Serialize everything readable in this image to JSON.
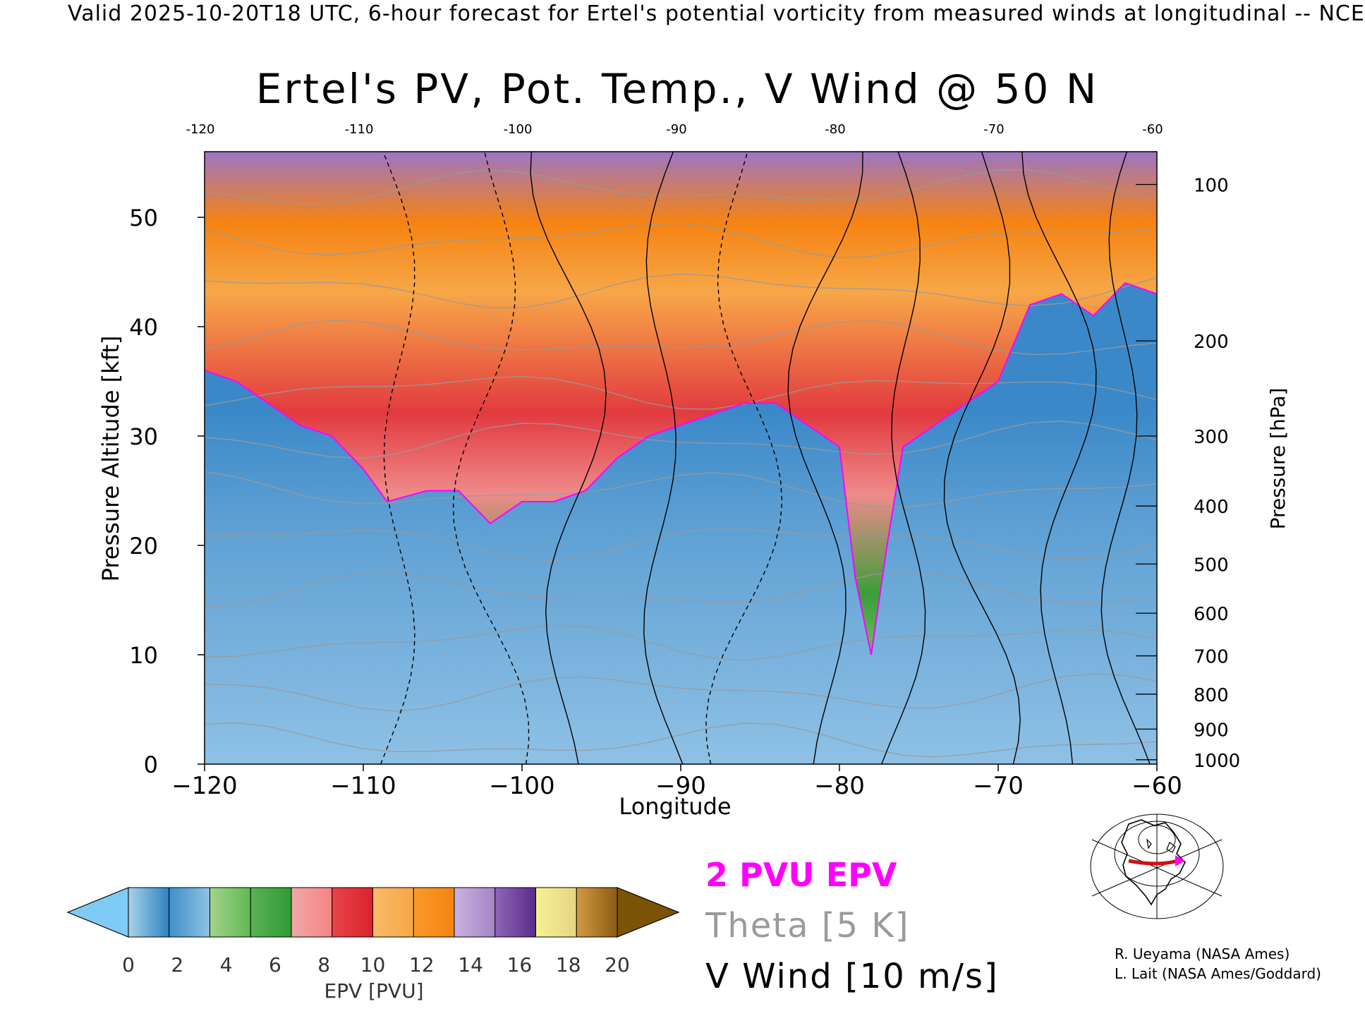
{
  "header": "Valid 2025-10-20T18 UTC, 6-hour forecast for Ertel's potential vorticity from measured winds at longitudinal -- NCE",
  "chart_data": {
    "type": "heatmap",
    "title": "Ertel's PV, Pot. Temp., V Wind @ 50 N",
    "xlabel": "Longitude",
    "ylabel": "Pressure Altitude [kft]",
    "y2label": "Pressure [hPa]",
    "xlim": [
      -120,
      -60
    ],
    "ylim": [
      0,
      56
    ],
    "x_ticks": [
      -120,
      -110,
      -100,
      -90,
      -80,
      -70,
      -60
    ],
    "x_tick_labels": [
      "−120",
      "−110",
      "−100",
      "−90",
      "−80",
      "−70",
      "−60"
    ],
    "top_tick_labels": [
      "-120",
      "-110",
      "-100",
      "-90",
      "-80",
      "-70",
      "-60"
    ],
    "y_ticks": [
      0,
      10,
      20,
      30,
      40,
      50
    ],
    "pressure_ticks": [
      {
        "hPa": "100",
        "kft": 53.0
      },
      {
        "hPa": "200",
        "kft": 38.7
      },
      {
        "hPa": "300",
        "kft": 30.0
      },
      {
        "hPa": "400",
        "kft": 23.6
      },
      {
        "hPa": "500",
        "kft": 18.3
      },
      {
        "hPa": "600",
        "kft": 13.8
      },
      {
        "hPa": "700",
        "kft": 9.9
      },
      {
        "hPa": "800",
        "kft": 6.4
      },
      {
        "hPa": "900",
        "kft": 3.2
      },
      {
        "hPa": "1000",
        "kft": 0.4
      }
    ],
    "colorbar": {
      "label": "EPV [PVU]",
      "tick_labels": [
        "0",
        "2",
        "4",
        "6",
        "8",
        "10",
        "12",
        "14",
        "16",
        "18",
        "20"
      ],
      "under_color": "#7fcbf5",
      "over_color": "#7a5306",
      "bins": [
        [
          "#a9d2ea",
          "#2c82c0"
        ],
        [
          "#3f90c9",
          "#8fc1e5"
        ],
        [
          "#a4d48e",
          "#5fb853"
        ],
        [
          "#5cb255",
          "#2f9a35"
        ],
        [
          "#f0a8a8",
          "#f58383"
        ],
        [
          "#e8454a",
          "#d9232b"
        ],
        [
          "#f9ba68",
          "#f7a748"
        ],
        [
          "#fa9a2a",
          "#f58312"
        ],
        [
          "#c9b2de",
          "#a584c8"
        ],
        [
          "#8e66b8",
          "#5b2c8a"
        ],
        [
          "#f6f193",
          "#e8d585"
        ],
        [
          "#d49a43",
          "#8a5b12"
        ]
      ]
    },
    "tropopause_pvu": 2,
    "tropopause_kft": [
      [
        -120,
        36
      ],
      [
        -118,
        35
      ],
      [
        -116,
        33
      ],
      [
        -114,
        31
      ],
      [
        -112,
        30
      ],
      [
        -110,
        27
      ],
      [
        -108.5,
        24
      ],
      [
        -106,
        25
      ],
      [
        -104,
        25
      ],
      [
        -102,
        22
      ],
      [
        -100,
        24
      ],
      [
        -98,
        24
      ],
      [
        -96,
        25
      ],
      [
        -94,
        28
      ],
      [
        -92,
        30
      ],
      [
        -90,
        31
      ],
      [
        -88,
        32
      ],
      [
        -86,
        33
      ],
      [
        -84,
        33
      ],
      [
        -82,
        31
      ],
      [
        -80,
        29
      ],
      [
        -79,
        17
      ],
      [
        -78,
        10
      ],
      [
        -77,
        20
      ],
      [
        -76,
        29
      ],
      [
        -74,
        31
      ],
      [
        -72,
        33
      ],
      [
        -70,
        35
      ],
      [
        -68,
        42
      ],
      [
        -66,
        43
      ],
      [
        -64,
        41
      ],
      [
        -62,
        44
      ],
      [
        -60,
        43
      ]
    ],
    "theta_levels_K": [
      300,
      310,
      320,
      330,
      340,
      350,
      360,
      370,
      380,
      390,
      400,
      410
    ],
    "v_wind_contours_ms": [
      -10,
      0,
      10,
      20,
      30,
      40
    ],
    "legend": {
      "pv": "2 PVU EPV",
      "theta": "Theta [5 K]",
      "wind": "V Wind [10 m/s]",
      "pv_color": "#ff00ff",
      "theta_color": "#999999"
    },
    "inset_map": "north-america-50N-section"
  },
  "credits": [
    "R. Ueyama (NASA Ames)",
    "L. Lait (NASA Ames/Goddard)"
  ]
}
